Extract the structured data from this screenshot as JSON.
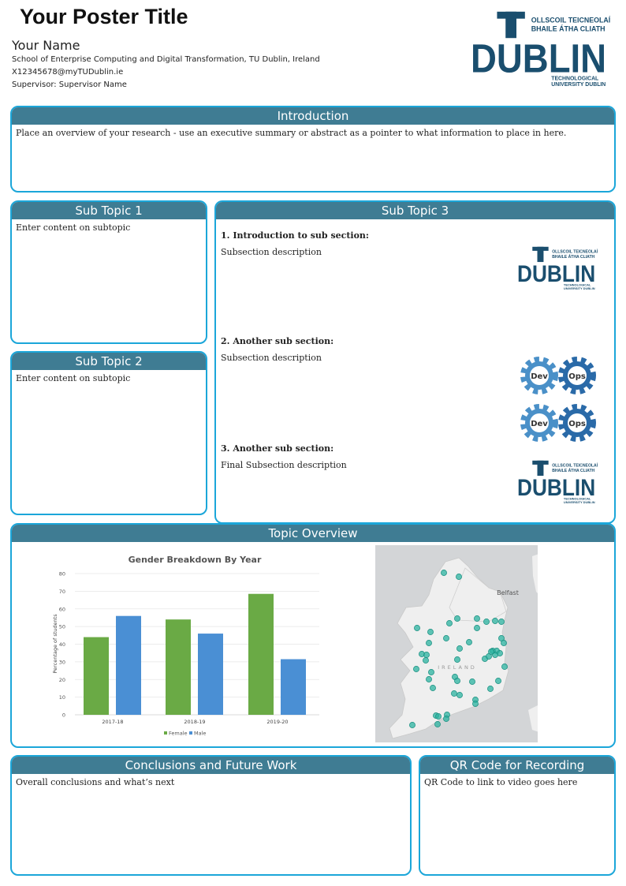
{
  "header": {
    "title": "Your Poster Title",
    "name": "Your Name",
    "school": "School of Enterprise Computing and Digital Transformation, TU Dublin, Ireland",
    "email": "X12345678@myTUDublin.ie",
    "supervisor": "Supervisor: Supervisor Name"
  },
  "logo": {
    "line1": "OLLSCOIL TEICNEOLAÍOCHTA",
    "line2": "BHAILE ÁTHA CLIATH",
    "word": "DUBLIN",
    "letter": "T",
    "line3": "TECHNOLOGICAL",
    "line4": "UNIVERSITY DUBLIN",
    "color": "#1a4e6e"
  },
  "intro": {
    "title": "Introduction",
    "text": "Place an overview of your research - use an executive summary or abstract as a pointer to what information to place in here."
  },
  "sub1": {
    "title": "Sub Topic 1",
    "text": "Enter content on subtopic"
  },
  "sub2": {
    "title": "Sub Topic 2",
    "text": "Enter content on subtopic"
  },
  "sub3": {
    "title": "Sub Topic 3",
    "sections": [
      {
        "heading": "1.  Introduction to sub section:",
        "text": "Subsection description"
      },
      {
        "heading": "2.  Another sub section:",
        "text": "Subsection description"
      },
      {
        "heading": "3.  Another sub section:",
        "text": "Final Subsection description"
      }
    ],
    "devops": {
      "dev": "Dev",
      "ops": "Ops",
      "dev_color": "#4a90c8",
      "ops_color": "#2a6aa8"
    }
  },
  "overview": {
    "title": "Topic Overview",
    "map": {
      "city": "Belfast",
      "country": "IRELAND",
      "dot_color": "#2bb3a0"
    }
  },
  "chart_data": {
    "type": "bar",
    "title": "Gender Breakdown By Year",
    "ylabel": "Percentage of students",
    "xlabel": "",
    "categories": [
      "2017-18",
      "2018-19",
      "2019-20"
    ],
    "series": [
      {
        "name": "Female",
        "values": [
          44,
          54,
          68.5
        ],
        "color": "#6aaa45"
      },
      {
        "name": "Male",
        "values": [
          56,
          46,
          31.5
        ],
        "color": "#4a8fd4"
      }
    ],
    "ylim": [
      0,
      80
    ],
    "yticks": [
      0,
      10,
      20,
      30,
      40,
      50,
      60,
      70,
      80
    ],
    "grid": true,
    "legend": "bottom"
  },
  "conclusions": {
    "title": "Conclusions and Future Work",
    "text": "Overall conclusions and what’s next"
  },
  "qr": {
    "title": "QR Code for Recording",
    "text": "QR Code to link to video goes here"
  },
  "colors": {
    "border": "#1ba6d9",
    "header": "#3f7c93"
  }
}
